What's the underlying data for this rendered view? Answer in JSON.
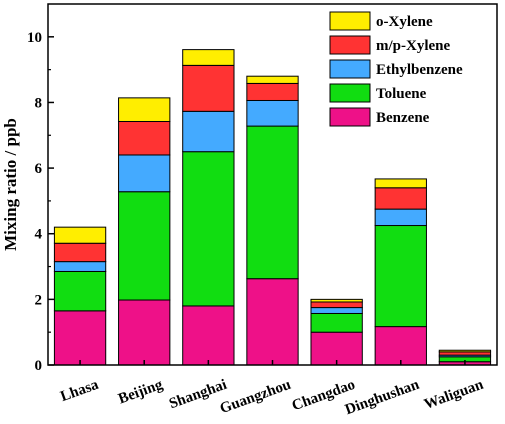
{
  "chart_data": {
    "type": "bar",
    "stacked": true,
    "categories": [
      "Lhasa",
      "Beijing",
      "Shanghai",
      "Guangzhou",
      "Changdao",
      "Dinghushan",
      "Waliguan"
    ],
    "series": [
      {
        "name": "Benzene",
        "color": "#ee1188",
        "values": [
          1.65,
          1.98,
          1.8,
          2.63,
          1.0,
          1.17,
          0.1
        ]
      },
      {
        "name": "Toluene",
        "color": "#11dd11",
        "values": [
          1.2,
          3.3,
          4.7,
          4.65,
          0.57,
          3.08,
          0.15
        ]
      },
      {
        "name": "Ethylbenzene",
        "color": "#44aaff",
        "values": [
          0.3,
          1.12,
          1.23,
          0.78,
          0.18,
          0.5,
          0.05
        ]
      },
      {
        "name": "m/p-Xylene",
        "color": "#ff3333",
        "values": [
          0.56,
          1.02,
          1.4,
          0.52,
          0.17,
          0.65,
          0.1
        ]
      },
      {
        "name": "o-Xylene",
        "color": "#ffee00",
        "values": [
          0.49,
          0.72,
          0.48,
          0.22,
          0.08,
          0.27,
          0.05
        ]
      }
    ],
    "ylabel": "Mixing ratio / ppb",
    "xlabel": "",
    "ylim": [
      0,
      11
    ],
    "yticks": [
      0,
      2,
      4,
      6,
      8,
      10
    ],
    "legend_position": "top-right",
    "legend_order": [
      "o-Xylene",
      "m/p-Xylene",
      "Ethylbenzene",
      "Toluene",
      "Benzene"
    ],
    "grid": false
  }
}
